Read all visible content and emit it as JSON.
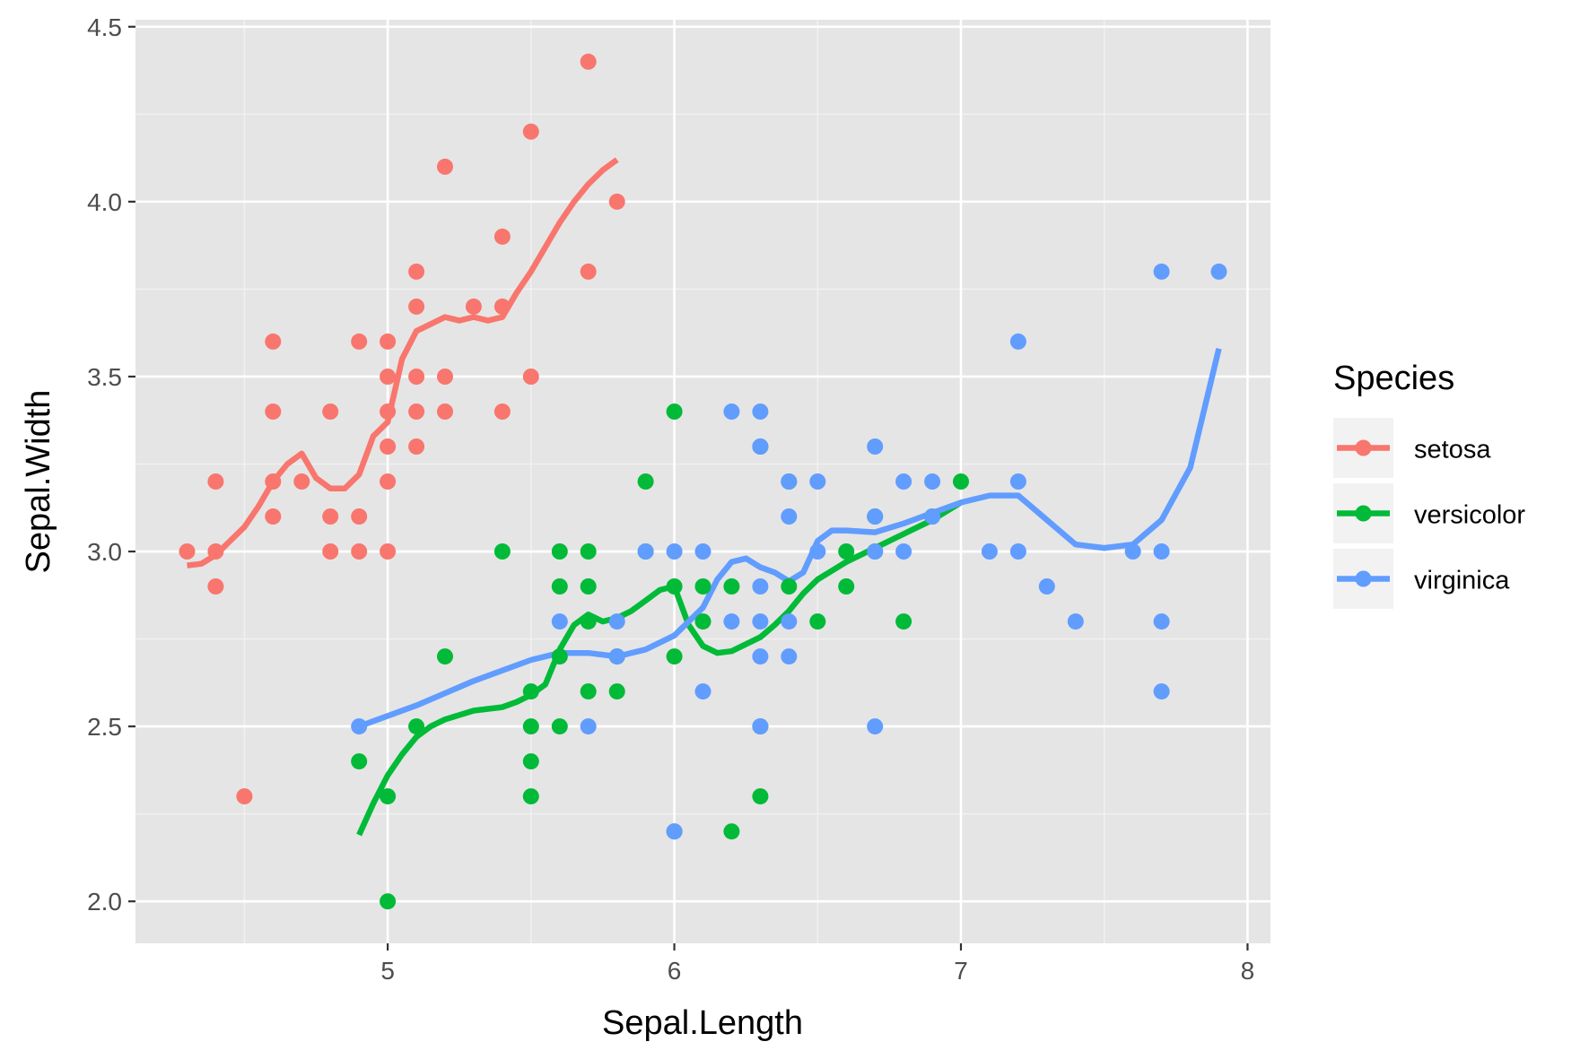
{
  "chart_data": {
    "type": "scatter",
    "xlabel": "Sepal.Length",
    "ylabel": "Sepal.Width",
    "xlim": [
      4.12,
      8.08
    ],
    "ylim": [
      1.88,
      4.52
    ],
    "x_ticks": [
      "5",
      "6",
      "7",
      "8"
    ],
    "y_ticks": [
      "2.0",
      "2.5",
      "3.0",
      "3.5",
      "4.0",
      "4.5"
    ],
    "grid": true,
    "panel_background": "#e5e5e5",
    "legend": {
      "title": "Species",
      "position": "right",
      "entries": [
        "setosa",
        "versicolor",
        "virginica"
      ]
    },
    "series": [
      {
        "name": "setosa",
        "color": "#f8766d",
        "points": [
          [
            4.3,
            3.0
          ],
          [
            4.4,
            3.0
          ],
          [
            4.4,
            3.2
          ],
          [
            4.4,
            2.9
          ],
          [
            4.5,
            2.3
          ],
          [
            4.6,
            3.6
          ],
          [
            4.6,
            3.4
          ],
          [
            4.6,
            3.2
          ],
          [
            4.6,
            3.1
          ],
          [
            4.7,
            3.2
          ],
          [
            4.8,
            3.4
          ],
          [
            4.8,
            3.1
          ],
          [
            4.8,
            3.0
          ],
          [
            4.9,
            3.6
          ],
          [
            4.9,
            3.1
          ],
          [
            4.9,
            3.0
          ],
          [
            5.0,
            3.6
          ],
          [
            5.0,
            3.5
          ],
          [
            5.0,
            3.4
          ],
          [
            5.0,
            3.3
          ],
          [
            5.0,
            3.2
          ],
          [
            5.0,
            3.0
          ],
          [
            5.1,
            3.8
          ],
          [
            5.1,
            3.7
          ],
          [
            5.1,
            3.5
          ],
          [
            5.1,
            3.4
          ],
          [
            5.1,
            3.3
          ],
          [
            5.2,
            4.1
          ],
          [
            5.2,
            3.5
          ],
          [
            5.2,
            3.4
          ],
          [
            5.3,
            3.7
          ],
          [
            5.4,
            3.9
          ],
          [
            5.4,
            3.7
          ],
          [
            5.4,
            3.4
          ],
          [
            5.5,
            4.2
          ],
          [
            5.5,
            3.5
          ],
          [
            5.7,
            4.4
          ],
          [
            5.7,
            3.8
          ],
          [
            5.8,
            4.0
          ]
        ],
        "smooth": [
          [
            4.3,
            2.96
          ],
          [
            4.35,
            2.965
          ],
          [
            4.4,
            2.99
          ],
          [
            4.45,
            3.03
          ],
          [
            4.5,
            3.07
          ],
          [
            4.55,
            3.13
          ],
          [
            4.6,
            3.2
          ],
          [
            4.65,
            3.25
          ],
          [
            4.7,
            3.28
          ],
          [
            4.75,
            3.21
          ],
          [
            4.8,
            3.18
          ],
          [
            4.85,
            3.18
          ],
          [
            4.9,
            3.22
          ],
          [
            4.95,
            3.33
          ],
          [
            5.0,
            3.37
          ],
          [
            5.05,
            3.55
          ],
          [
            5.1,
            3.63
          ],
          [
            5.15,
            3.65
          ],
          [
            5.2,
            3.67
          ],
          [
            5.25,
            3.66
          ],
          [
            5.3,
            3.67
          ],
          [
            5.35,
            3.66
          ],
          [
            5.4,
            3.67
          ],
          [
            5.45,
            3.74
          ],
          [
            5.5,
            3.8
          ],
          [
            5.55,
            3.87
          ],
          [
            5.6,
            3.94
          ],
          [
            5.65,
            4.0
          ],
          [
            5.7,
            4.05
          ],
          [
            5.75,
            4.09
          ],
          [
            5.8,
            4.12
          ]
        ]
      },
      {
        "name": "versicolor",
        "color": "#00ba38",
        "points": [
          [
            4.9,
            2.4
          ],
          [
            5.0,
            2.3
          ],
          [
            5.0,
            2.0
          ],
          [
            5.1,
            2.5
          ],
          [
            5.2,
            2.7
          ],
          [
            5.4,
            3.0
          ],
          [
            5.5,
            2.6
          ],
          [
            5.5,
            2.5
          ],
          [
            5.5,
            2.4
          ],
          [
            5.5,
            2.3
          ],
          [
            5.6,
            3.0
          ],
          [
            5.6,
            2.9
          ],
          [
            5.6,
            2.7
          ],
          [
            5.6,
            2.5
          ],
          [
            5.7,
            3.0
          ],
          [
            5.7,
            2.9
          ],
          [
            5.7,
            2.8
          ],
          [
            5.7,
            2.6
          ],
          [
            5.8,
            2.6
          ],
          [
            5.8,
            2.7
          ],
          [
            5.9,
            3.2
          ],
          [
            5.9,
            3.0
          ],
          [
            6.0,
            3.4
          ],
          [
            6.0,
            2.9
          ],
          [
            6.0,
            2.7
          ],
          [
            6.0,
            2.2
          ],
          [
            6.1,
            2.9
          ],
          [
            6.1,
            2.8
          ],
          [
            6.2,
            2.9
          ],
          [
            6.2,
            2.2
          ],
          [
            6.3,
            2.3
          ],
          [
            6.3,
            2.5
          ],
          [
            6.3,
            3.3
          ],
          [
            6.4,
            3.2
          ],
          [
            6.4,
            2.9
          ],
          [
            6.5,
            2.8
          ],
          [
            6.6,
            3.0
          ],
          [
            6.6,
            2.9
          ],
          [
            6.7,
            3.1
          ],
          [
            6.7,
            3.0
          ],
          [
            6.8,
            2.8
          ],
          [
            6.9,
            3.1
          ],
          [
            7.0,
            3.2
          ]
        ],
        "smooth": [
          [
            4.9,
            2.19
          ],
          [
            4.95,
            2.28
          ],
          [
            5.0,
            2.36
          ],
          [
            5.05,
            2.42
          ],
          [
            5.1,
            2.47
          ],
          [
            5.15,
            2.5
          ],
          [
            5.2,
            2.52
          ],
          [
            5.3,
            2.545
          ],
          [
            5.4,
            2.555
          ],
          [
            5.45,
            2.57
          ],
          [
            5.5,
            2.59
          ],
          [
            5.55,
            2.62
          ],
          [
            5.6,
            2.72
          ],
          [
            5.65,
            2.79
          ],
          [
            5.7,
            2.82
          ],
          [
            5.75,
            2.8
          ],
          [
            5.8,
            2.81
          ],
          [
            5.85,
            2.83
          ],
          [
            5.9,
            2.86
          ],
          [
            5.95,
            2.89
          ],
          [
            6.0,
            2.9
          ],
          [
            6.05,
            2.79
          ],
          [
            6.1,
            2.73
          ],
          [
            6.15,
            2.71
          ],
          [
            6.2,
            2.715
          ],
          [
            6.3,
            2.755
          ],
          [
            6.35,
            2.79
          ],
          [
            6.4,
            2.83
          ],
          [
            6.45,
            2.88
          ],
          [
            6.5,
            2.92
          ],
          [
            6.6,
            2.97
          ],
          [
            6.7,
            3.01
          ],
          [
            6.8,
            3.05
          ],
          [
            6.9,
            3.09
          ],
          [
            7.0,
            3.14
          ]
        ]
      },
      {
        "name": "virginica",
        "color": "#619cff",
        "points": [
          [
            4.9,
            2.5
          ],
          [
            5.6,
            2.8
          ],
          [
            5.7,
            2.5
          ],
          [
            5.8,
            2.8
          ],
          [
            5.8,
            2.7
          ],
          [
            5.9,
            3.0
          ],
          [
            6.0,
            3.0
          ],
          [
            6.0,
            2.2
          ],
          [
            6.1,
            3.0
          ],
          [
            6.1,
            2.6
          ],
          [
            6.2,
            3.4
          ],
          [
            6.2,
            2.8
          ],
          [
            6.3,
            3.4
          ],
          [
            6.3,
            3.3
          ],
          [
            6.3,
            2.9
          ],
          [
            6.3,
            2.8
          ],
          [
            6.3,
            2.7
          ],
          [
            6.3,
            2.5
          ],
          [
            6.4,
            3.2
          ],
          [
            6.4,
            3.1
          ],
          [
            6.4,
            2.8
          ],
          [
            6.4,
            2.7
          ],
          [
            6.5,
            3.2
          ],
          [
            6.5,
            3.0
          ],
          [
            6.7,
            3.3
          ],
          [
            6.7,
            3.1
          ],
          [
            6.7,
            3.0
          ],
          [
            6.7,
            2.5
          ],
          [
            6.8,
            3.2
          ],
          [
            6.8,
            3.0
          ],
          [
            6.9,
            3.2
          ],
          [
            6.9,
            3.1
          ],
          [
            7.1,
            3.0
          ],
          [
            7.2,
            3.6
          ],
          [
            7.2,
            3.2
          ],
          [
            7.2,
            3.0
          ],
          [
            7.3,
            2.9
          ],
          [
            7.4,
            2.8
          ],
          [
            7.6,
            3.0
          ],
          [
            7.7,
            3.8
          ],
          [
            7.7,
            3.0
          ],
          [
            7.7,
            2.8
          ],
          [
            7.7,
            2.6
          ],
          [
            7.9,
            3.8
          ]
        ],
        "smooth": [
          [
            4.9,
            2.5
          ],
          [
            5.1,
            2.56
          ],
          [
            5.3,
            2.63
          ],
          [
            5.5,
            2.69
          ],
          [
            5.6,
            2.71
          ],
          [
            5.7,
            2.71
          ],
          [
            5.8,
            2.7
          ],
          [
            5.9,
            2.72
          ],
          [
            6.0,
            2.76
          ],
          [
            6.1,
            2.84
          ],
          [
            6.15,
            2.92
          ],
          [
            6.2,
            2.97
          ],
          [
            6.25,
            2.98
          ],
          [
            6.3,
            2.955
          ],
          [
            6.35,
            2.94
          ],
          [
            6.4,
            2.915
          ],
          [
            6.45,
            2.94
          ],
          [
            6.5,
            3.03
          ],
          [
            6.55,
            3.06
          ],
          [
            6.6,
            3.06
          ],
          [
            6.7,
            3.055
          ],
          [
            6.8,
            3.08
          ],
          [
            6.9,
            3.11
          ],
          [
            7.0,
            3.14
          ],
          [
            7.1,
            3.16
          ],
          [
            7.2,
            3.16
          ],
          [
            7.3,
            3.09
          ],
          [
            7.4,
            3.02
          ],
          [
            7.5,
            3.01
          ],
          [
            7.6,
            3.02
          ],
          [
            7.7,
            3.09
          ],
          [
            7.8,
            3.24
          ],
          [
            7.9,
            3.58
          ]
        ]
      }
    ]
  }
}
